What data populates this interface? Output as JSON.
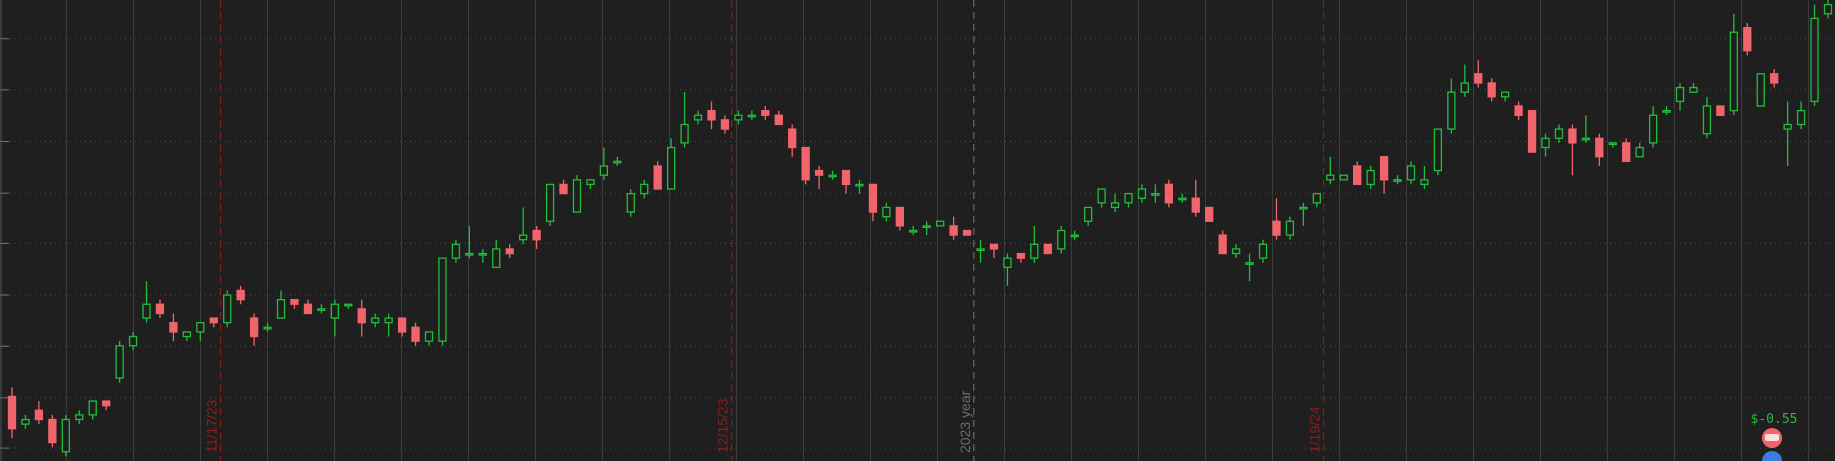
{
  "chart_data": {
    "type": "candlestick",
    "ylim": [
      0,
      100
    ],
    "yticks": [
      2.8,
      13.7,
      24.9,
      36,
      47.2,
      58.1,
      69.3,
      80.5,
      91.6
    ],
    "grid": true,
    "up_color": "#1fbf3a",
    "down_color": "#f2646b",
    "date_color": "#8a1f1f",
    "year_color": "#6a6a6a",
    "annotation": "$-0.55",
    "x": [
      null,
      null,
      null,
      null,
      null,
      null,
      null,
      null,
      null,
      null,
      null,
      null,
      null,
      null,
      null,
      null,
      "11/17/23",
      null,
      null,
      null,
      null,
      null,
      null,
      null,
      null,
      null,
      null,
      null,
      null,
      null,
      null,
      null,
      null,
      null,
      null,
      null,
      null,
      null,
      null,
      null,
      null,
      null,
      null,
      null,
      null,
      null,
      null,
      null,
      null,
      null,
      null,
      null,
      null,
      null,
      "12/15/23",
      null,
      null,
      null,
      null,
      null,
      null,
      null,
      null,
      null,
      null,
      null,
      null,
      null,
      null,
      null,
      null,
      null,
      "2023 year",
      null,
      null,
      null,
      null,
      null,
      null,
      null,
      null,
      null,
      null,
      null,
      null,
      null,
      null,
      null,
      null,
      null,
      null,
      null,
      null,
      null,
      null,
      null,
      null,
      null,
      "1/19/24",
      null,
      null,
      null,
      null,
      null,
      null,
      null,
      null,
      null,
      null,
      null,
      null,
      null,
      null,
      null,
      null,
      null,
      null,
      null,
      null,
      null,
      null,
      null,
      null,
      null,
      null,
      null,
      null,
      null,
      null,
      null,
      null,
      null,
      null,
      null,
      null,
      null
    ],
    "candles": [
      [
        14,
        16,
        5,
        7
      ],
      [
        8,
        10,
        7,
        9
      ],
      [
        11,
        13,
        8,
        9
      ],
      [
        9,
        10,
        3,
        4
      ],
      [
        2,
        10,
        1,
        9
      ],
      [
        9,
        11,
        8,
        10
      ],
      [
        10,
        13,
        9,
        13
      ],
      [
        13,
        13,
        11,
        12
      ],
      [
        18,
        26,
        17,
        25
      ],
      [
        25,
        28,
        24,
        27
      ],
      [
        31,
        39,
        30,
        34
      ],
      [
        34,
        35,
        31,
        32
      ],
      [
        30,
        32,
        26,
        28
      ],
      [
        27,
        28,
        26,
        28
      ],
      [
        28,
        30,
        26,
        30
      ],
      [
        31,
        31,
        29,
        30
      ],
      [
        30,
        37,
        29,
        36
      ],
      [
        37,
        38,
        34,
        35
      ],
      [
        31,
        32,
        25,
        27
      ],
      [
        29,
        30,
        28,
        29
      ],
      [
        31,
        37,
        31,
        35
      ],
      [
        35,
        35,
        33,
        34
      ],
      [
        34,
        35,
        32,
        32
      ],
      [
        33,
        34,
        32,
        33
      ],
      [
        31,
        35,
        27,
        34
      ],
      [
        34,
        34,
        33,
        34
      ],
      [
        33,
        35,
        27,
        30
      ],
      [
        30,
        32,
        29,
        31
      ],
      [
        30,
        32,
        27,
        31
      ],
      [
        31,
        31,
        27,
        28
      ],
      [
        29,
        30,
        25,
        26
      ],
      [
        26,
        28,
        25,
        28
      ],
      [
        26,
        44,
        25,
        44
      ],
      [
        44,
        48,
        43,
        47
      ],
      [
        45,
        51,
        44,
        45
      ],
      [
        45,
        46,
        43,
        45
      ],
      [
        42,
        48,
        42,
        46
      ],
      [
        46,
        47,
        44,
        45
      ],
      [
        48,
        55,
        47,
        49
      ],
      [
        50,
        51,
        46,
        48
      ],
      [
        52,
        60,
        51,
        60
      ],
      [
        60,
        61,
        58,
        58
      ],
      [
        54,
        62,
        54,
        61
      ],
      [
        60,
        61,
        59,
        61
      ],
      [
        62,
        68,
        61,
        64
      ],
      [
        65,
        66,
        64,
        65
      ],
      [
        54,
        59,
        53,
        58
      ],
      [
        58,
        61,
        57,
        60
      ],
      [
        64,
        65,
        59,
        59
      ],
      [
        59,
        70,
        59,
        68
      ],
      [
        69,
        80,
        68,
        73
      ],
      [
        74,
        76,
        73,
        75
      ],
      [
        76,
        78,
        72,
        74
      ],
      [
        74,
        75,
        71,
        72
      ],
      [
        74,
        76,
        73,
        75
      ],
      [
        75,
        76,
        74,
        75
      ],
      [
        76,
        77,
        74,
        75
      ],
      [
        75,
        76,
        73,
        73
      ],
      [
        72,
        73,
        66,
        68
      ],
      [
        68,
        68,
        60,
        61
      ],
      [
        63,
        64,
        59,
        62
      ],
      [
        62,
        63,
        61,
        62
      ],
      [
        63,
        63,
        58,
        60
      ],
      [
        60,
        61,
        58,
        60
      ],
      [
        60,
        60,
        52,
        54
      ],
      [
        53,
        56,
        52,
        55
      ],
      [
        55,
        55,
        50,
        51
      ],
      [
        50,
        51,
        49,
        50
      ],
      [
        51,
        52,
        49,
        51
      ],
      [
        51,
        52,
        51,
        52
      ],
      [
        51,
        53,
        48,
        49
      ],
      [
        50,
        50,
        49,
        49
      ],
      [
        46,
        48,
        43,
        46
      ],
      [
        47,
        47,
        44,
        46
      ],
      [
        42,
        45,
        38,
        44
      ],
      [
        45,
        45,
        43,
        44
      ],
      [
        44,
        51,
        43,
        47
      ],
      [
        47,
        47,
        45,
        45
      ],
      [
        46,
        51,
        45,
        50
      ],
      [
        49,
        50,
        48,
        49
      ],
      [
        52,
        55,
        51,
        55
      ],
      [
        56,
        59,
        55,
        59
      ],
      [
        55,
        58,
        54,
        56
      ],
      [
        56,
        58,
        55,
        58
      ],
      [
        57,
        60,
        56,
        59
      ],
      [
        58,
        60,
        56,
        58
      ],
      [
        60,
        61,
        55,
        56
      ],
      [
        57,
        58,
        56,
        57
      ],
      [
        57,
        61,
        53,
        54
      ],
      [
        55,
        55,
        52,
        52
      ],
      [
        49,
        50,
        45,
        45
      ],
      [
        45,
        47,
        44,
        46
      ],
      [
        43,
        45,
        39,
        43
      ],
      [
        44,
        48,
        43,
        47
      ],
      [
        52,
        57,
        48,
        49
      ],
      [
        49,
        53,
        48,
        52
      ],
      [
        55,
        56,
        51,
        55
      ],
      [
        56,
        58,
        55,
        58
      ],
      [
        61,
        66,
        60,
        62
      ],
      [
        61,
        62,
        61,
        62
      ],
      [
        64,
        65,
        60,
        60
      ],
      [
        60,
        64,
        59,
        63
      ],
      [
        66,
        66,
        58,
        61
      ],
      [
        61,
        62,
        60,
        61
      ],
      [
        61,
        65,
        60,
        64
      ],
      [
        60,
        64,
        59,
        61
      ],
      [
        63,
        72,
        62,
        72
      ],
      [
        72,
        83,
        71,
        80
      ],
      [
        80,
        86,
        79,
        82
      ],
      [
        84,
        87,
        81,
        82
      ],
      [
        82,
        83,
        78,
        79
      ],
      [
        79,
        80,
        78,
        80
      ],
      [
        77,
        78,
        74,
        75
      ],
      [
        76,
        76,
        67,
        67
      ],
      [
        68,
        71,
        66,
        70
      ],
      [
        70,
        73,
        69,
        72
      ],
      [
        72,
        73,
        62,
        69
      ],
      [
        70,
        75,
        69,
        70
      ],
      [
        70,
        71,
        64,
        66
      ],
      [
        69,
        69,
        68,
        69
      ],
      [
        69,
        70,
        65,
        65
      ],
      [
        66,
        69,
        66,
        68
      ],
      [
        69,
        77,
        68,
        75
      ],
      [
        76,
        77,
        75,
        76
      ],
      [
        78,
        82,
        76,
        81
      ],
      [
        80,
        82,
        80,
        81
      ],
      [
        71,
        79,
        70,
        77
      ],
      [
        77,
        77,
        75,
        75
      ],
      [
        76,
        97,
        75,
        93
      ],
      [
        94,
        95,
        88,
        89
      ],
      [
        77,
        84,
        77,
        84
      ],
      [
        84,
        85,
        81,
        82
      ],
      [
        72,
        78,
        64,
        73
      ],
      [
        73,
        78,
        72,
        76
      ],
      [
        78,
        99,
        77,
        96
      ],
      [
        97,
        100,
        96,
        99
      ]
    ]
  }
}
